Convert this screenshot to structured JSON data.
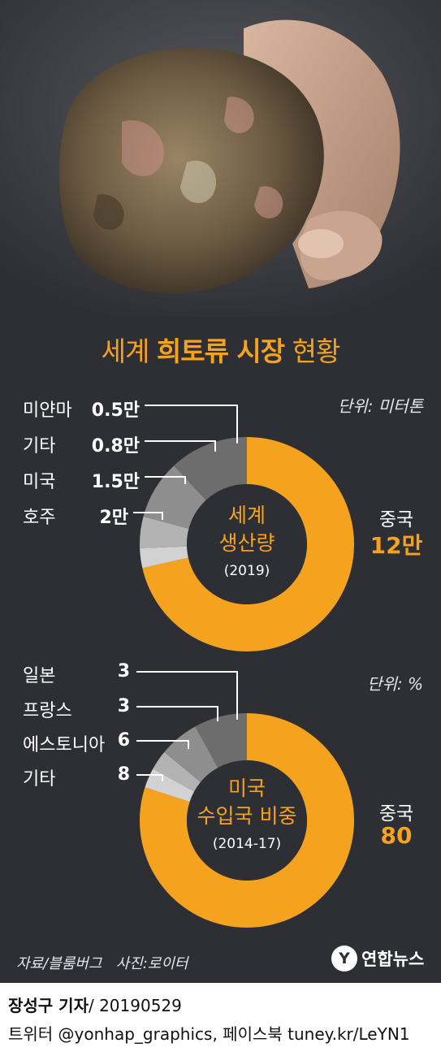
{
  "title": {
    "normal1": "세계 ",
    "bold": "희토류 시장",
    "normal2": " 현황"
  },
  "photo": {
    "subject": "rare-earth ore held in a hand",
    "credit": "사진:로이터"
  },
  "colors": {
    "accent": "#f5a21f",
    "background": "#2e2f34",
    "slice_1": "#6d6d6d",
    "slice_2": "#8e8e8e",
    "slice_3": "#b3b3b3",
    "slice_4": "#d2d2d2"
  },
  "chart_data": [
    {
      "type": "pie",
      "style": "donut",
      "center_label": [
        "세계",
        "생산량"
      ],
      "center_sub": "(2019)",
      "unit": "단위: 미터톤",
      "slices": [
        {
          "label": "중국",
          "value": 120000,
          "display": "12만"
        },
        {
          "label": "미얀마",
          "value": 5000,
          "display": "0.5만"
        },
        {
          "label": "기타",
          "value": 8000,
          "display": "0.8만"
        },
        {
          "label": "미국",
          "value": 15000,
          "display": "1.5만"
        },
        {
          "label": "호주",
          "value": 20000,
          "display": "2만"
        }
      ]
    },
    {
      "type": "pie",
      "style": "donut",
      "center_label": [
        "미국",
        "수입국 비중"
      ],
      "center_sub": "(2014-17)",
      "unit": "단위: %",
      "slices": [
        {
          "label": "중국",
          "value": 80,
          "display": "80"
        },
        {
          "label": "일본",
          "value": 3,
          "display": "3"
        },
        {
          "label": "프랑스",
          "value": 3,
          "display": "3"
        },
        {
          "label": "에스토니아",
          "value": 6,
          "display": "6"
        },
        {
          "label": "기타",
          "value": 8,
          "display": "8"
        }
      ]
    }
  ],
  "source": "자료/블룸버그",
  "logo": {
    "mark": "Y",
    "text": "연합뉴스"
  },
  "footer": {
    "reporter": "장성구 기자",
    "date": "/  20190529",
    "social": "트위터 @yonhap_graphics, 페이스북 tuney.kr/LeYN1"
  }
}
